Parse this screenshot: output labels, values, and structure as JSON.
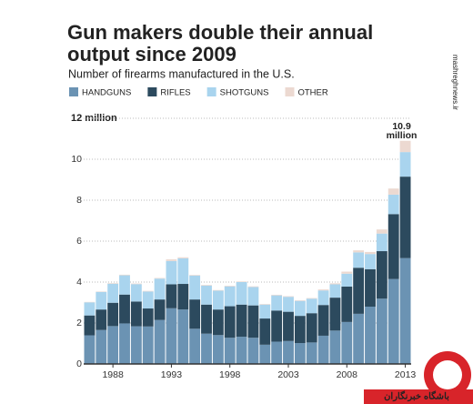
{
  "chart_data": {
    "type": "stacked-bar",
    "title": [
      "Gun makers double their annual",
      "output since 2009"
    ],
    "subtitle": "Number of firearms manufactured in the U.S.",
    "categories": [
      null,
      null,
      "1988",
      null,
      null,
      null,
      null,
      "1993",
      null,
      null,
      null,
      null,
      "1998",
      null,
      null,
      null,
      null,
      "2003",
      null,
      null,
      null,
      null,
      "2008",
      null,
      null,
      null,
      null,
      "2013"
    ],
    "series": [
      {
        "name": "HANDGUNS",
        "color": "#6b93b3",
        "values": [
          1.4,
          1.66,
          1.85,
          1.98,
          1.84,
          1.83,
          2.15,
          2.72,
          2.66,
          1.72,
          1.48,
          1.41,
          1.28,
          1.33,
          1.28,
          0.94,
          1.09,
          1.12,
          1.02,
          1.05,
          1.38,
          1.63,
          2.05,
          2.45,
          2.8,
          3.19,
          4.15,
          5.17
        ]
      },
      {
        "name": "RIFLES",
        "color": "#2c4a5e",
        "values": [
          0.97,
          1.0,
          1.14,
          1.41,
          1.21,
          0.88,
          1.0,
          1.17,
          1.25,
          1.43,
          1.42,
          1.25,
          1.54,
          1.57,
          1.58,
          1.28,
          1.52,
          1.43,
          1.33,
          1.43,
          1.5,
          1.61,
          1.73,
          2.25,
          1.83,
          2.32,
          3.17,
          3.98
        ]
      },
      {
        "name": "SHOTGUNS",
        "color": "#a9d4ee",
        "values": [
          0.64,
          0.86,
          0.93,
          0.94,
          0.85,
          0.83,
          1.02,
          1.14,
          1.25,
          1.17,
          0.93,
          0.92,
          0.97,
          1.1,
          0.9,
          0.68,
          0.74,
          0.73,
          0.73,
          0.71,
          0.71,
          0.65,
          0.63,
          0.75,
          0.74,
          0.86,
          0.95,
          1.2
        ]
      },
      {
        "name": "OTHER",
        "color": "#ecd9d1",
        "values": [
          0.02,
          0.02,
          0.03,
          0.03,
          0.03,
          0.03,
          0.03,
          0.08,
          0.05,
          0.03,
          0.03,
          0.03,
          0.03,
          0.03,
          0.03,
          0.03,
          0.03,
          0.03,
          0.03,
          0.03,
          0.05,
          0.05,
          0.1,
          0.1,
          0.1,
          0.2,
          0.3,
          0.55
        ]
      }
    ],
    "ylim": [
      0,
      12
    ],
    "yticks": [
      0,
      2,
      4,
      6,
      8,
      10,
      {
        "value": 12,
        "label": "12 million"
      }
    ],
    "grid": true,
    "annotation": [
      "10.9",
      "million"
    ]
  },
  "watermark": "mashreghnews.ir",
  "logo_text": "باشگاه خبرنگاران"
}
